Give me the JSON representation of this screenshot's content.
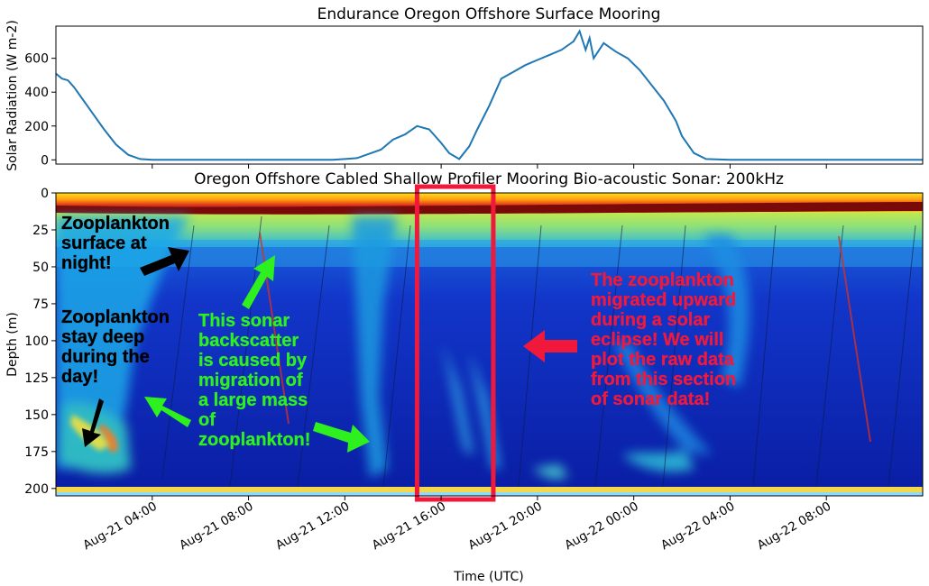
{
  "chart_data": [
    {
      "type": "line",
      "title": "Endurance Oregon Offshore Surface Mooring",
      "ylabel": "Solar Radiation (W m-2)",
      "xlabel": "",
      "xlim": [
        "2021-08-21T00:00",
        "2021-08-22T12:00"
      ],
      "ylim": [
        -25,
        790
      ],
      "yticks": [
        0,
        200,
        400,
        600
      ],
      "grid": false,
      "line_color": "#1f77b4",
      "series": [
        {
          "x": [
            "2021-08-21T00:00",
            "2021-08-21T00:15",
            "2021-08-21T00:30",
            "2021-08-21T00:45",
            "2021-08-21T01:00",
            "2021-08-21T01:30",
            "2021-08-21T02:00",
            "2021-08-21T02:30",
            "2021-08-21T03:00",
            "2021-08-21T03:30",
            "2021-08-21T04:00",
            "2021-08-21T06:00",
            "2021-08-21T08:00",
            "2021-08-21T10:00",
            "2021-08-21T11:30",
            "2021-08-21T12:30",
            "2021-08-21T13:30",
            "2021-08-21T14:00",
            "2021-08-21T14:30",
            "2021-08-21T15:00",
            "2021-08-21T15:30",
            "2021-08-21T16:00",
            "2021-08-21T16:20",
            "2021-08-21T16:45",
            "2021-08-21T17:10",
            "2021-08-21T17:30",
            "2021-08-21T18:00",
            "2021-08-21T18:30",
            "2021-08-21T19:00",
            "2021-08-21T19:30",
            "2021-08-21T20:00",
            "2021-08-21T20:30",
            "2021-08-21T21:00",
            "2021-08-21T21:30",
            "2021-08-21T21:45",
            "2021-08-21T22:00",
            "2021-08-21T22:10",
            "2021-08-21T22:20",
            "2021-08-21T22:45",
            "2021-08-21T23:15",
            "2021-08-21T23:45",
            "2021-08-22T00:15",
            "2021-08-22T00:45",
            "2021-08-22T01:15",
            "2021-08-22T01:45",
            "2021-08-22T02:00",
            "2021-08-22T02:30",
            "2021-08-22T03:00",
            "2021-08-22T04:00",
            "2021-08-22T06:00",
            "2021-08-22T08:00",
            "2021-08-22T10:00",
            "2021-08-22T12:00"
          ],
          "values": [
            510,
            480,
            470,
            430,
            380,
            280,
            180,
            90,
            30,
            5,
            0,
            0,
            0,
            0,
            0,
            10,
            60,
            120,
            150,
            200,
            180,
            100,
            40,
            5,
            80,
            180,
            320,
            480,
            520,
            560,
            590,
            620,
            650,
            700,
            760,
            650,
            720,
            600,
            690,
            640,
            600,
            530,
            440,
            350,
            230,
            140,
            40,
            5,
            0,
            0,
            0,
            0,
            0
          ]
        }
      ]
    },
    {
      "type": "heatmap",
      "title": "Oregon Offshore Cabled Shallow Profiler Mooring Bio-acoustic Sonar: 200kHz",
      "xlabel": "Time (UTC)",
      "ylabel": "Depth (m)",
      "ylim": [
        205,
        0
      ],
      "yticks": [
        0,
        25,
        50,
        75,
        100,
        125,
        150,
        175,
        200
      ],
      "xtick_labels": [
        "Aug-21 04:00",
        "Aug-21 08:00",
        "Aug-21 12:00",
        "Aug-21 16:00",
        "Aug-21 20:00",
        "Aug-22 00:00",
        "Aug-22 04:00",
        "Aug-22 08:00"
      ],
      "highlight_box": {
        "start": "2021-08-21T15:00",
        "end": "2021-08-21T18:10",
        "color": "#f0193c"
      }
    }
  ],
  "annotations": [
    {
      "id": "night",
      "lines": [
        "Zooplankton",
        "surface at",
        "night!"
      ],
      "color": "#000000"
    },
    {
      "id": "day",
      "lines": [
        "Zooplankton",
        "stay deep",
        "during the",
        "day!"
      ],
      "color": "#000000"
    },
    {
      "id": "mass",
      "lines": [
        "This sonar",
        "backscatter",
        "is caused by",
        "migration of",
        "a large mass",
        "of",
        "zooplankton!"
      ],
      "color": "#2ef01e"
    },
    {
      "id": "eclipse",
      "lines": [
        "The zooplankton",
        "migrated upward",
        "during a solar",
        "eclipse! We will",
        "plot the raw data",
        "from this section",
        "of sonar data!"
      ],
      "color": "#f0193c"
    }
  ]
}
